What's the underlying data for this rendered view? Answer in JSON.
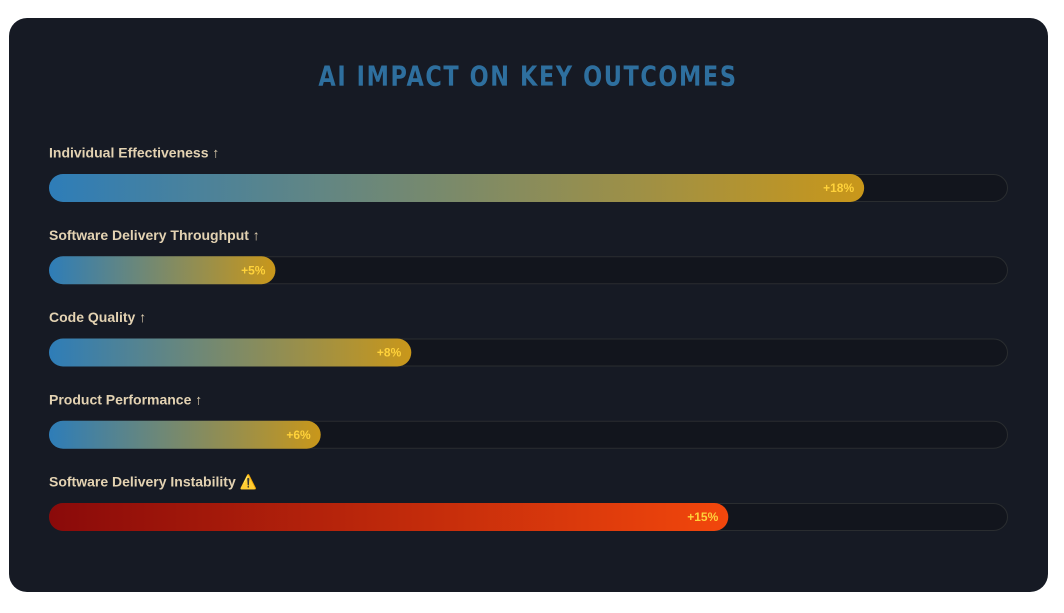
{
  "chart_data": {
    "type": "bar",
    "orientation": "horizontal",
    "title": "AI IMPACT ON KEY OUTCOMES",
    "categories": [
      "Individual Effectiveness ↑",
      "Software Delivery Throughput ↑",
      "Code Quality ↑",
      "Product Performance ↑",
      "Software Delivery Instability ⚠️"
    ],
    "values": [
      18,
      5,
      8,
      6,
      15
    ],
    "value_labels": [
      "+18%",
      "+5%",
      "+8%",
      "+6%",
      "+15%"
    ],
    "colors": [
      [
        "#2e7db8",
        "#c9971a"
      ],
      [
        "#2e7db8",
        "#c9971a"
      ],
      [
        "#2e7db8",
        "#c9971a"
      ],
      [
        "#2e7db8",
        "#c9971a"
      ],
      [
        "#8a0a0a",
        "#f2470c"
      ]
    ],
    "label_color": "#ffd23a"
  }
}
